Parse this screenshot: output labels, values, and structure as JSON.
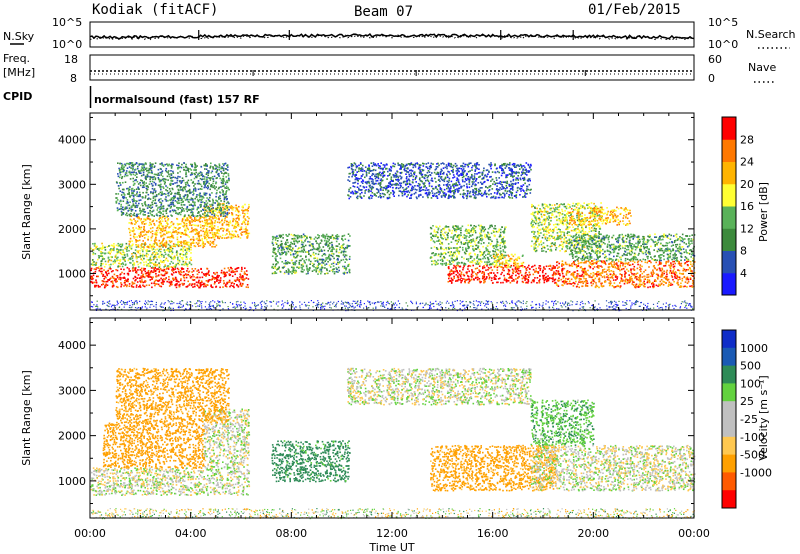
{
  "header": {
    "station": "Kodiak (fitACF)",
    "beam": "Beam 07",
    "date": "01/Feb/2015"
  },
  "summary_panel": {
    "left_label": "N.Sky",
    "right_label": "N.Search",
    "left_ticks": [
      "10^5",
      "10^0"
    ],
    "right_ticks": [
      "10^5",
      "10^0"
    ]
  },
  "freq_panel": {
    "left_label_1": "Freq.",
    "left_label_2": "[MHz]",
    "left_ticks": [
      "18",
      "8"
    ],
    "right_ticks": [
      "60",
      "0"
    ],
    "right_label": "Nave"
  },
  "cpid": {
    "label": "CPID",
    "mode_text": "normalsound (fast) 157 RF"
  },
  "colors": {
    "power_scale": [
      "#1a1aff",
      "#2850b4",
      "#3c8a3c",
      "#59b259",
      "#ffff33",
      "#ffb400",
      "#ff7800",
      "#ff0000"
    ],
    "velocity_scale": [
      "#ff0000",
      "#ff5a00",
      "#ffa000",
      "#ffc850",
      "#c0c0c0",
      "#c0c0c0",
      "#63d23f",
      "#2e8b57",
      "#1a5ab4",
      "#0f2dc8"
    ]
  },
  "chart_data": [
    {
      "type": "heatmap",
      "name": "Power",
      "xlabel": "Time UT",
      "ylabel": "Slant Range [km]",
      "xlim": [
        "00:00",
        "24:00"
      ],
      "ylim": [
        180,
        4600
      ],
      "x_ticks": [
        "00:00",
        "04:00",
        "08:00",
        "12:00",
        "16:00",
        "20:00",
        "00:00"
      ],
      "y_ticks": [
        1000,
        2000,
        3000,
        4000
      ],
      "colorbar": {
        "label": "Power [dB]",
        "ticks": [
          4,
          8,
          12,
          16,
          20,
          24,
          28
        ],
        "range": [
          0,
          32
        ]
      },
      "regions": [
        {
          "t0": 0.0,
          "t1": 6.3,
          "r0": 700,
          "r1": 1150,
          "value": 30
        },
        {
          "t0": 0.0,
          "t1": 4.0,
          "r0": 1150,
          "r1": 1700,
          "value": 16
        },
        {
          "t0": 1.5,
          "t1": 5.0,
          "r0": 1600,
          "r1": 2300,
          "value": 22
        },
        {
          "t0": 4.5,
          "t1": 6.3,
          "r0": 1800,
          "r1": 2600,
          "value": 22
        },
        {
          "t0": 1.0,
          "t1": 5.5,
          "r0": 2300,
          "r1": 3500,
          "value": 10
        },
        {
          "t0": 7.2,
          "t1": 10.3,
          "r0": 1000,
          "r1": 1900,
          "value": 12
        },
        {
          "t0": 10.2,
          "t1": 17.5,
          "r0": 2700,
          "r1": 3500,
          "value": 6
        },
        {
          "t0": 13.5,
          "t1": 16.5,
          "r0": 1200,
          "r1": 2100,
          "value": 14
        },
        {
          "t0": 14.2,
          "t1": 18.8,
          "r0": 800,
          "r1": 1200,
          "value": 30
        },
        {
          "t0": 16.0,
          "t1": 17.2,
          "r0": 1150,
          "r1": 1450,
          "value": 20
        },
        {
          "t0": 17.5,
          "t1": 20.3,
          "r0": 1500,
          "r1": 2600,
          "value": 16
        },
        {
          "t0": 18.5,
          "t1": 24.0,
          "r0": 700,
          "r1": 1300,
          "value": 26
        },
        {
          "t0": 19.0,
          "t1": 24.0,
          "r0": 1300,
          "r1": 1900,
          "value": 12
        },
        {
          "t0": 19.0,
          "t1": 21.5,
          "r0": 2100,
          "r1": 2500,
          "value": 22
        }
      ]
    },
    {
      "type": "heatmap",
      "name": "Velocity",
      "xlabel": "Time UT",
      "ylabel": "Slant Range [km]",
      "xlim": [
        "00:00",
        "24:00"
      ],
      "ylim": [
        180,
        4600
      ],
      "x_ticks": [
        "00:00",
        "04:00",
        "08:00",
        "12:00",
        "16:00",
        "20:00",
        "00:00"
      ],
      "y_ticks": [
        1000,
        2000,
        3000,
        4000
      ],
      "colorbar": {
        "label": "Velocity [m s⁻¹]",
        "ticks": [
          "1000",
          "500",
          "100",
          "25",
          "-25",
          "-100",
          "-500",
          "-1000"
        ]
      },
      "regions": [
        {
          "t0": 0.0,
          "t1": 6.3,
          "r0": 700,
          "r1": 1300,
          "value": 0
        },
        {
          "t0": 4.5,
          "t1": 6.3,
          "r0": 1300,
          "r1": 2600,
          "value": 0
        },
        {
          "t0": 0.5,
          "t1": 4.5,
          "r0": 1300,
          "r1": 2300,
          "value": -200
        },
        {
          "t0": 1.0,
          "t1": 5.5,
          "r0": 2300,
          "r1": 3500,
          "value": -150
        },
        {
          "t0": 7.2,
          "t1": 10.3,
          "r0": 1000,
          "r1": 1900,
          "value": 150
        },
        {
          "t0": 10.2,
          "t1": 17.5,
          "r0": 2700,
          "r1": 3500,
          "value": 0
        },
        {
          "t0": 13.5,
          "t1": 18.5,
          "r0": 800,
          "r1": 1800,
          "value": -150
        },
        {
          "t0": 17.5,
          "t1": 24.0,
          "r0": 800,
          "r1": 1800,
          "value": 0
        },
        {
          "t0": 17.5,
          "t1": 20.0,
          "r0": 1800,
          "r1": 2800,
          "value": 80
        }
      ]
    }
  ]
}
